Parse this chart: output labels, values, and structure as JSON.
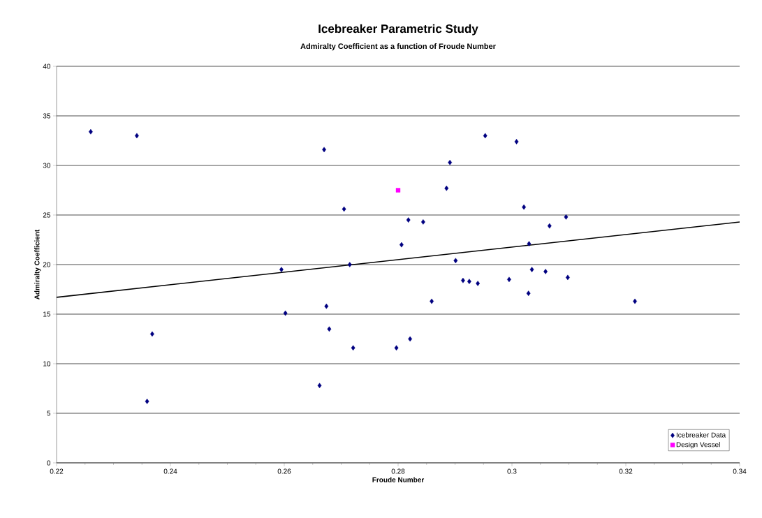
{
  "chart_data": {
    "type": "scatter",
    "title": "Icebreaker Parametric Study",
    "subtitle": "Admiralty Coefficient as a function of Froude Number",
    "xlabel": "Froude Number",
    "ylabel": "Admiralty Coefficient",
    "xlim": [
      0.22,
      0.34
    ],
    "ylim": [
      0,
      40
    ],
    "xticks": [
      0.22,
      0.24,
      0.26,
      0.28,
      0.3,
      0.32,
      0.34
    ],
    "yticks": [
      0,
      5,
      10,
      15,
      20,
      25,
      30,
      35,
      40
    ],
    "grid": "y",
    "legend": "bottom right",
    "series": [
      {
        "name": "Icebreaker Data",
        "marker": "diamond",
        "color": "#000080",
        "x": [
          0.226,
          0.2341,
          0.267,
          0.2705,
          0.2595,
          0.2715,
          0.2953,
          0.3008,
          0.2891,
          0.2885,
          0.3021,
          0.2818,
          0.2844,
          0.3095,
          0.3066,
          0.2806,
          0.303,
          0.2901,
          0.3035,
          0.3059,
          0.2914,
          0.2925,
          0.294,
          0.2995,
          0.3098,
          0.3029,
          0.2859,
          0.3216,
          0.2368,
          0.2359,
          0.2602,
          0.2674,
          0.2679,
          0.2721,
          0.2797,
          0.2662,
          0.2821
        ],
        "values": [
          33.4,
          33.0,
          31.6,
          25.6,
          19.5,
          20.0,
          33.0,
          32.4,
          30.3,
          27.7,
          25.8,
          24.5,
          24.3,
          24.8,
          23.9,
          22.0,
          22.1,
          20.4,
          19.5,
          19.3,
          18.4,
          18.3,
          18.1,
          18.5,
          18.7,
          17.1,
          16.3,
          16.3,
          13.0,
          6.2,
          15.1,
          15.8,
          13.5,
          11.6,
          11.6,
          7.8,
          12.5
        ]
      },
      {
        "name": "Design Vessel",
        "marker": "square",
        "color": "#ff00ff",
        "x": [
          0.28
        ],
        "values": [
          27.5
        ]
      },
      {
        "type": "line",
        "color": "#000000",
        "marker": "none",
        "x": [
          0.22,
          0.34
        ],
        "values": [
          16.7,
          24.3
        ]
      }
    ]
  }
}
